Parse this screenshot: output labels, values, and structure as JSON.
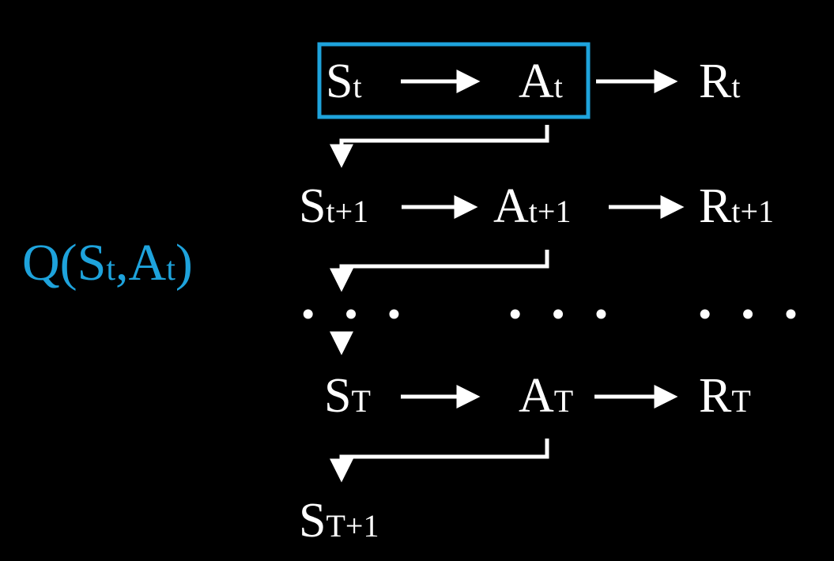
{
  "colors": {
    "background": "#000000",
    "text": "#ffffff",
    "highlight": "#1ea3dc"
  },
  "q_value": {
    "open": "Q(",
    "s_base": "S",
    "s_sub": "t",
    "comma": ",",
    "a_base": "A",
    "a_sub": "t",
    "close": ")"
  },
  "rows": [
    {
      "state": {
        "base": "S",
        "sub": "t"
      },
      "action": {
        "base": "A",
        "sub": "t"
      },
      "reward": {
        "base": "R",
        "sub": "t"
      }
    },
    {
      "state": {
        "base": "S",
        "sub": "t+1"
      },
      "action": {
        "base": "A",
        "sub": "t+1"
      },
      "reward": {
        "base": "R",
        "sub": "t+1"
      }
    },
    {
      "state": {
        "base": "S",
        "sub": "T"
      },
      "action": {
        "base": "A",
        "sub": "T"
      },
      "reward": {
        "base": "R",
        "sub": "T"
      }
    }
  ],
  "ellipsis": [
    "• • •",
    "• • •",
    "• • •"
  ],
  "final_state": {
    "base": "S",
    "sub": "T+1"
  }
}
